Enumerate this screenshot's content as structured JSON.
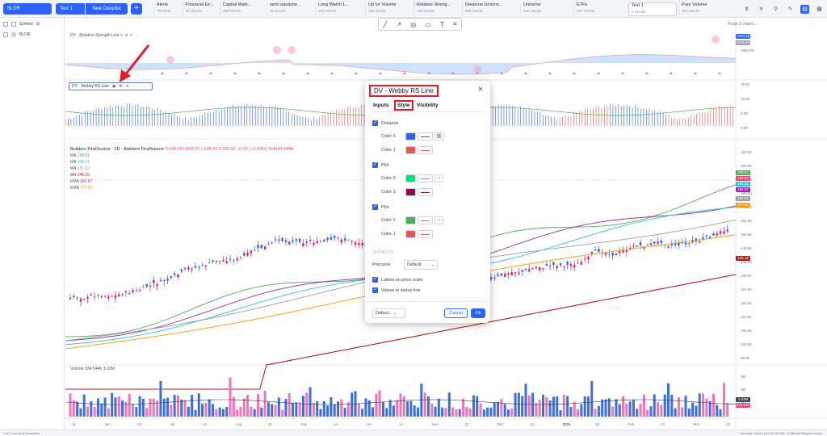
{
  "topbar": {
    "symbol": "BLDR",
    "active_tab": "Test 1",
    "new_deeplist": "New Deeplist",
    "add": "+",
    "tabs": [
      {
        "title": "Alerts",
        "sub": "79 Alerts"
      },
      {
        "title": "Financial Ex...",
        "sub": "25 Stocks"
      },
      {
        "title": "Capital Mark...",
        "sub": "968 Stocks"
      },
      {
        "title": "semi equipme...",
        "sub": "38 Stocks"
      },
      {
        "title": "Long Watch L...",
        "sub": "222 Stocks"
      },
      {
        "title": "Up on Volume",
        "sub": "126 Stocks"
      },
      {
        "title": "Relative Streng...",
        "sub": "199 Stocks"
      },
      {
        "title": "Deepvue Univers...",
        "sub": "524 Stocks"
      },
      {
        "title": "Universe",
        "sub": "246 Stocks"
      },
      {
        "title": "ETFs",
        "sub": "457 Stocks"
      },
      {
        "title": "Test 1",
        "sub": "0 Stocks"
      },
      {
        "title": "Pure Volume",
        "sub": "301 Stocks"
      }
    ]
  },
  "leftpanel": {
    "header": "Symbol",
    "row": "BLDR"
  },
  "chart": {
    "rs_legend": "DV · Relative Strength Line",
    "rs_values": [
      "1150.38",
      "1143.49"
    ],
    "rs_axis": [
      "1800.00"
    ],
    "webby_legend": "DV · Webby RS Line",
    "webby_axis": [
      "15.00",
      "10.00",
      "5.00",
      "0.00"
    ],
    "main_title": "Builders FirstSource · 1D · Builders FirstSource",
    "ohlc": "O194.15 H197.37 L194.15 C195.92 −0.97 (−0.54%) Vol934.544K",
    "ma_lines": [
      {
        "label": "MA",
        "value": "198.81",
        "color": "#4caf50"
      },
      {
        "label": "MA",
        "value": "194.21",
        "color": "#26c6da"
      },
      {
        "label": "MA",
        "value": "181.62",
        "color": "#9e9e9e"
      },
      {
        "label": "MA",
        "value": "146.19",
        "color": "#b71c1c"
      },
      {
        "label": "EMA",
        "value": "192.97",
        "color": "#9c27b0"
      },
      {
        "label": "EMA",
        "value": "177.43",
        "color": "#ff9800"
      }
    ],
    "price_axis": [
      "210.00",
      "200.00",
      "190.00",
      "180.00",
      "172.00",
      "164.00",
      "156.00",
      "148.50",
      "140.50",
      "128.50",
      "122.50",
      "116.50",
      "111.50",
      "106.50",
      "102.00",
      "98.00"
    ],
    "price_tags": [
      {
        "value": "198.81",
        "color": "#4caf50"
      },
      {
        "value": "195.92",
        "color": "#ec407a"
      },
      {
        "value": "194.21",
        "color": "#26c6da"
      },
      {
        "value": "192.97",
        "color": "#9c27b0"
      },
      {
        "value": "181.62",
        "color": "#9e9e9e"
      },
      {
        "value": "177.43",
        "color": "#ff9800"
      },
      {
        "value": "146.19",
        "color": "#b71c1c"
      }
    ],
    "volume_legend": "Volume 934.544K 1.03M",
    "volume_axis": [
      "3M",
      "2M",
      "1M"
    ],
    "volume_tags": [
      "1.03M",
      "934.54K"
    ],
    "time_axis": [
      "11",
      "Jun",
      "13",
      "Jul",
      "14",
      "Aug",
      "11",
      "Sep",
      "14",
      "Oct",
      "13",
      "Nov",
      "13",
      "Dec",
      "13",
      "2024",
      "12",
      "Feb",
      "13",
      "Mar",
      "13"
    ],
    "press_hint": "Press 3 charts ..."
  },
  "modal": {
    "title": "DV - Webby RS Line",
    "close": "×",
    "tabs": [
      "Inputs",
      "Style",
      "Visibility"
    ],
    "sections": [
      {
        "name": "Distance",
        "colors": [
          {
            "label": "Color 0",
            "swatch": "#2962ff",
            "line": "#2962ff"
          },
          {
            "label": "Color 1",
            "swatch": "#f05454",
            "line": "#f05454"
          }
        ],
        "has_chart_style": true
      },
      {
        "name": "Plot",
        "colors": [
          {
            "label": "Color 0",
            "swatch": "#00e676",
            "line": "#00e676"
          },
          {
            "label": "Color 1",
            "swatch": "#880e4f",
            "line": "#880e4f"
          }
        ],
        "has_chart_style": true
      },
      {
        "name": "Plot",
        "colors": [
          {
            "label": "Color 0",
            "swatch": "#4caf50",
            "line": "#4caf50"
          },
          {
            "label": "Color 1",
            "swatch": "#f05454",
            "line": "#f05454"
          }
        ],
        "has_chart_style": true
      }
    ],
    "outputs_label": "OUTPUTS",
    "precision_label": "Precision",
    "precision_value": "Default",
    "labels_on_price_scale": "Labels on price scale",
    "values_in_status_line": "Values in status line",
    "defaults": "Defaul...",
    "cancel": "Cancel",
    "ok": "Ok"
  },
  "status": {
    "left": "1 of 1 results (0 selected)",
    "right": "Monday, March 18 4:51:25 AM · © Market Regular Hours"
  }
}
